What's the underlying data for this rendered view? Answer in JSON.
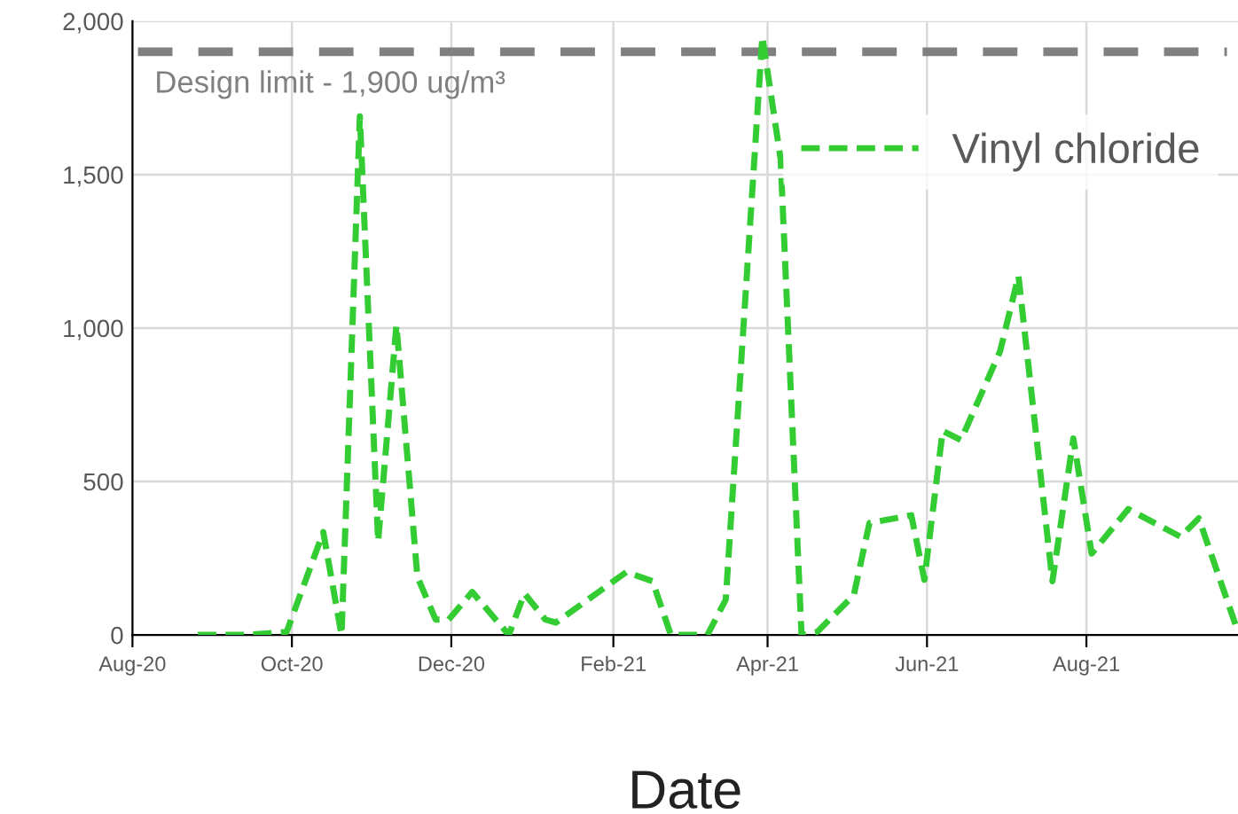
{
  "chart_data": {
    "type": "line",
    "xlabel": "Date",
    "x": [
      "2020-08-26",
      "2020-09-14",
      "2020-09-29",
      "2020-10-13",
      "2020-10-20",
      "2020-10-27",
      "2020-11-03",
      "2020-11-10",
      "2020-11-18",
      "2020-11-25",
      "2020-11-30",
      "2020-12-09",
      "2020-12-23",
      "2020-12-29",
      "2021-01-06",
      "2021-01-10",
      "2021-02-06",
      "2021-02-16",
      "2021-02-23",
      "2021-03-09",
      "2021-03-16",
      "2021-03-30",
      "2021-04-06",
      "2021-04-14",
      "2021-04-20",
      "2021-05-04",
      "2021-05-10",
      "2021-05-26",
      "2021-05-31",
      "2021-06-07",
      "2021-06-14",
      "2021-06-29",
      "2021-07-06",
      "2021-07-19",
      "2021-07-27",
      "2021-08-03",
      "2021-08-17",
      "2021-09-06",
      "2021-09-13",
      "2021-09-28"
    ],
    "series": [
      {
        "name": "Vinyl chloride",
        "color": "#33cc33",
        "values": [
          0,
          0,
          10,
          335,
          0,
          1690,
          305,
          1010,
          190,
          50,
          50,
          140,
          0,
          135,
          50,
          40,
          205,
          175,
          0,
          0,
          115,
          1950,
          1550,
          0,
          10,
          130,
          365,
          390,
          180,
          665,
          635,
          925,
          1170,
          175,
          640,
          265,
          410,
          320,
          380,
          10
        ]
      }
    ],
    "xlim": [
      "2020-08-01",
      "2021-09-28"
    ],
    "xticks": [
      {
        "value": "2020-08-01",
        "label": "Aug-20"
      },
      {
        "value": "2020-10-01",
        "label": "Oct-20"
      },
      {
        "value": "2020-12-01",
        "label": "Dec-20"
      },
      {
        "value": "2021-02-01",
        "label": "Feb-21"
      },
      {
        "value": "2021-04-01",
        "label": "Apr-21"
      },
      {
        "value": "2021-06-01",
        "label": "Jun-21"
      },
      {
        "value": "2021-08-01",
        "label": "Aug-21"
      }
    ],
    "ylim": [
      0,
      2000
    ],
    "yticks": [
      {
        "value": 0,
        "label": "0"
      },
      {
        "value": 500,
        "label": "500"
      },
      {
        "value": 1000,
        "label": "1,000"
      },
      {
        "value": 1500,
        "label": "1,500"
      },
      {
        "value": 2000,
        "label": "2,000"
      }
    ],
    "ref_lines": [
      {
        "axis": "y",
        "value": 1900,
        "label": "Design limit - 1,900 ug/m³",
        "color": "#808080",
        "line_style": "dashed"
      }
    ],
    "grid": true,
    "legend": "top right",
    "line_style": "dashed",
    "marker": "none"
  }
}
